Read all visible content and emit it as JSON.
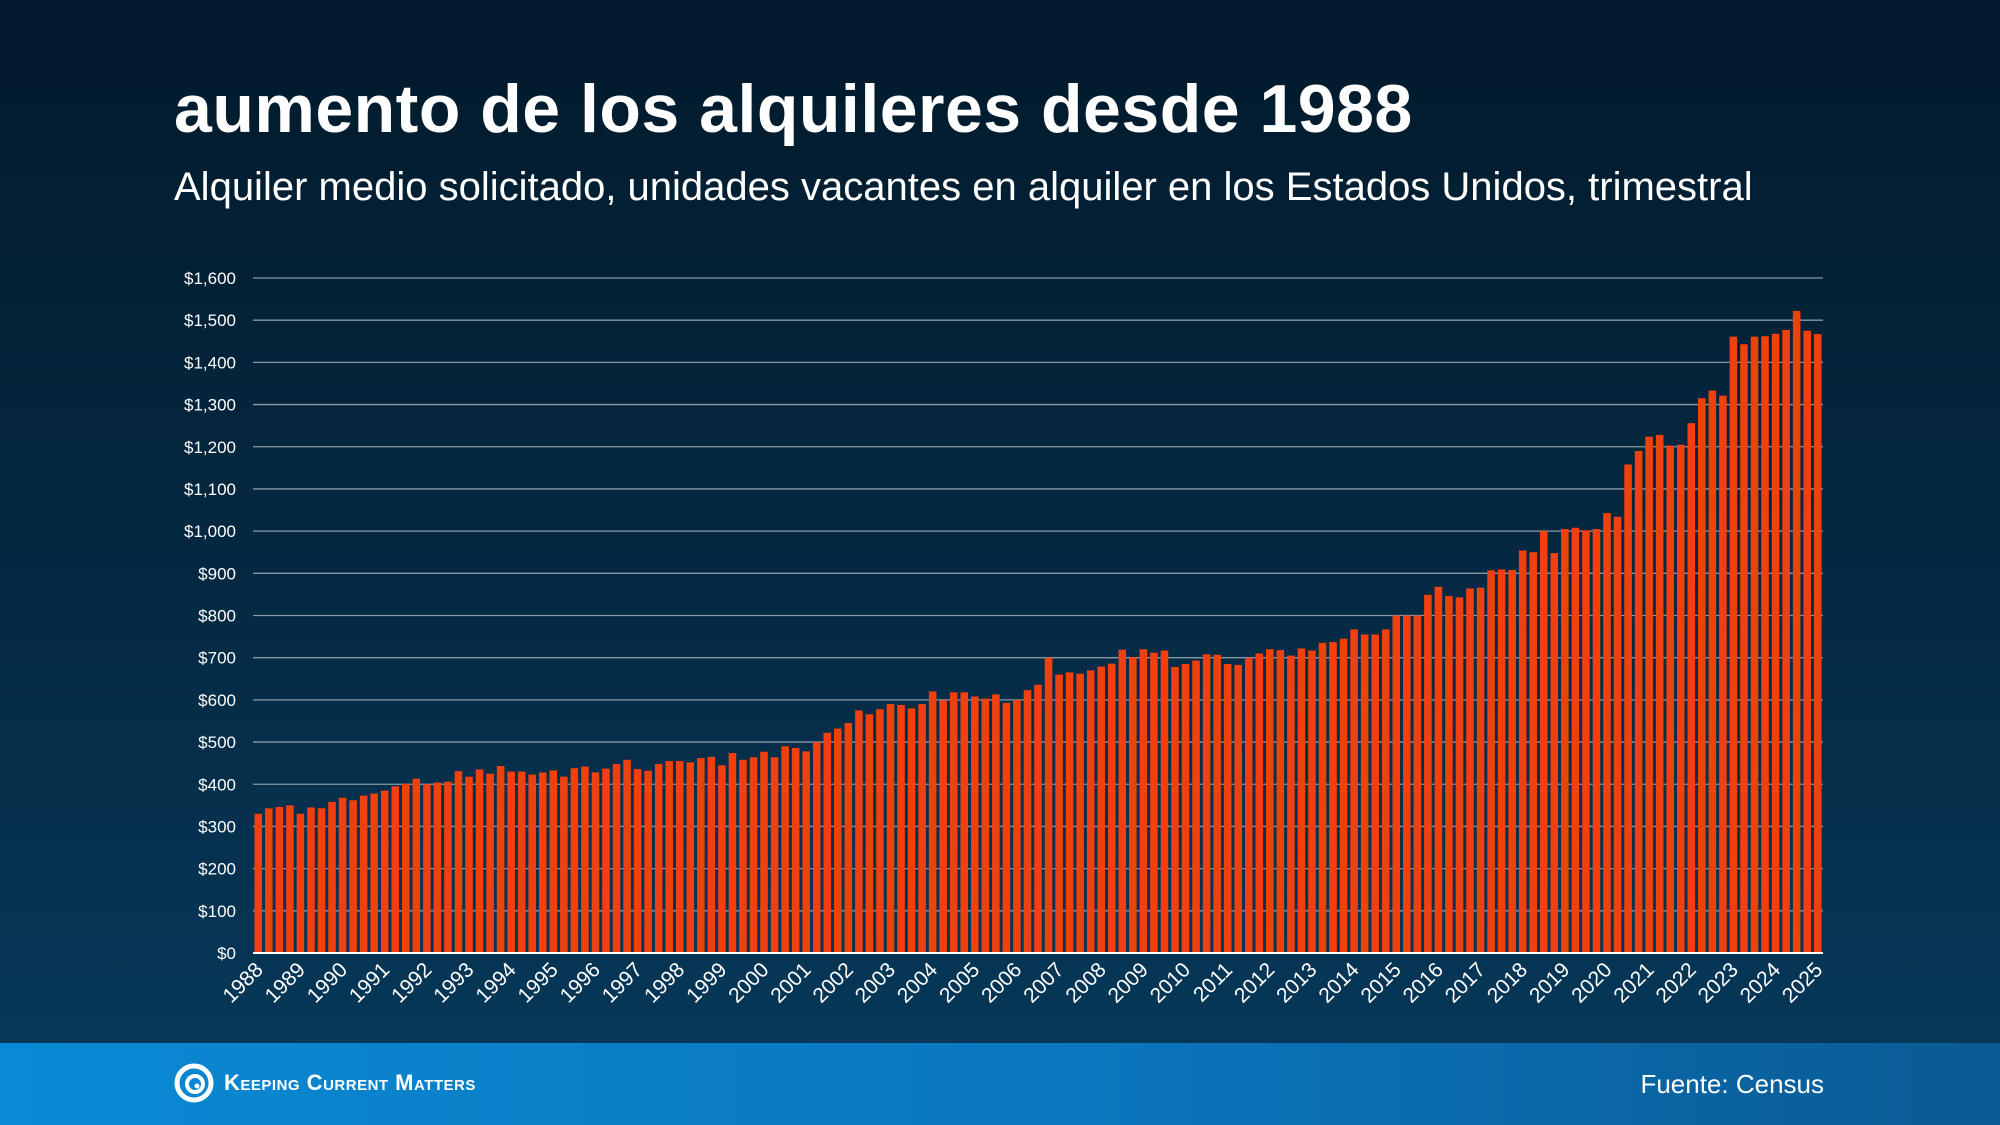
{
  "header": {
    "title": "aumento de los alquileres desde 1988",
    "subtitle": "Alquiler medio solicitado, unidades vacantes en alquiler en los Estados Unidos, trimestral"
  },
  "footer": {
    "brand": "Keeping Current Matters",
    "source": "Fuente: Census"
  },
  "colors": {
    "bar": "#f0400e",
    "grid": "#8a98a6",
    "footer_start": "#0a8ad4",
    "footer_end": "#0a5a93"
  },
  "chart_data": {
    "type": "bar",
    "title": "aumento de los alquileres desde 1988",
    "subtitle": "Alquiler medio solicitado, unidades vacantes en alquiler en los Estados Unidos, trimestral",
    "xlabel": "",
    "ylabel": "",
    "ylim": [
      0,
      1600
    ],
    "yticks": [
      "$0",
      "$100",
      "$200",
      "$300",
      "$400",
      "$500",
      "$600",
      "$700",
      "$800",
      "$900",
      "$1,000",
      "$1,100",
      "$1,200",
      "$1,300",
      "$1,400",
      "$1,500",
      "$1,600"
    ],
    "grid": true,
    "year_labels": [
      "1988",
      "1989",
      "1990",
      "1991",
      "1992",
      "1993",
      "1994",
      "1995",
      "1996",
      "1997",
      "1998",
      "1999",
      "2000",
      "2001",
      "2002",
      "2003",
      "2004",
      "2005",
      "2006",
      "2007",
      "2008",
      "2009",
      "2010",
      "2011",
      "2012",
      "2013",
      "2014",
      "2015",
      "2016",
      "2017",
      "2018",
      "2019",
      "2020",
      "2021",
      "2022",
      "2023",
      "2024",
      "2025"
    ],
    "values": [
      330,
      343,
      346,
      350,
      330,
      345,
      343,
      358,
      368,
      362,
      373,
      378,
      385,
      395,
      401,
      413,
      400,
      404,
      406,
      431,
      418,
      435,
      425,
      443,
      430,
      430,
      423,
      428,
      433,
      418,
      438,
      442,
      428,
      437,
      448,
      458,
      436,
      432,
      448,
      455,
      455,
      452,
      462,
      465,
      445,
      474,
      458,
      464,
      477,
      464,
      490,
      486,
      478,
      500,
      522,
      532,
      545,
      575,
      566,
      578,
      590,
      588,
      580,
      590,
      620,
      599,
      618,
      618,
      608,
      603,
      613,
      593,
      600,
      623,
      636,
      700,
      660,
      665,
      662,
      670,
      679,
      686,
      719,
      701,
      720,
      712,
      717,
      678,
      685,
      693,
      708,
      707,
      685,
      683,
      700,
      710,
      720,
      718,
      705,
      722,
      717,
      735,
      737,
      745,
      767,
      755,
      755,
      767,
      800,
      800,
      800,
      849,
      868,
      846,
      843,
      864,
      866,
      907,
      909,
      908,
      954,
      950,
      1000,
      948,
      1005,
      1008,
      1002,
      1005,
      1043,
      1034,
      1158,
      1190,
      1224,
      1228,
      1203,
      1205,
      1256,
      1315,
      1333,
      1321,
      1461,
      1443,
      1461,
      1462,
      1468,
      1477,
      1522,
      1475,
      1467
    ]
  }
}
